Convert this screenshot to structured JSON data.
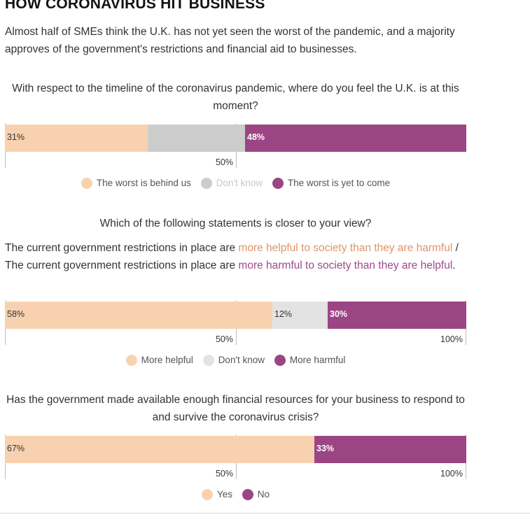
{
  "header": {
    "title": "HOW CORONAVIRUS HIT BUSINESS",
    "subtitle": "Almost half of SMEs think the U.K. has not yet seen the worst of the pandemic, and a majority approves of the government's restrictions and financial aid to businesses."
  },
  "colors": {
    "positive": "#f8d2b0",
    "neutral": "#e3e3e3",
    "negative": "#9c4584",
    "highlight_helpful": "#e0946a",
    "highlight_harmful": "#9c4a8a"
  },
  "statement": {
    "prefix": "The current government restrictions in place are ",
    "helpful_phrase": "more helpful to society than they are harmful",
    "middle": " / The current government restrictions in place are ",
    "harmful_phrase": "more harmful to society than they are helpful",
    "suffix": "."
  },
  "chart_data": [
    {
      "type": "bar",
      "orientation": "horizontal-stacked",
      "title": "With respect to the timeline of the coronavirus pandemic, where do you feel the U.K. is at this moment?",
      "series": [
        {
          "name": "The worst is behind us",
          "value": 31,
          "label": "31%",
          "color": "#f8d2b0",
          "legend_faded": false
        },
        {
          "name": "Don't know",
          "value": 21,
          "label": "",
          "color": "#cccccc",
          "legend_faded": true
        },
        {
          "name": "The worst is yet to come",
          "value": 48,
          "label": "48%",
          "color": "#9c4584",
          "legend_faded": false
        }
      ],
      "xlim": [
        0,
        100
      ],
      "gridlines": [
        50
      ],
      "tick_labels": [
        "50%"
      ]
    },
    {
      "type": "bar",
      "orientation": "horizontal-stacked",
      "title": "Which of the following statements is closer to your view?",
      "series": [
        {
          "name": "More helpful",
          "value": 58,
          "label": "58%",
          "color": "#f8d2b0",
          "legend_faded": false
        },
        {
          "name": "Don't know",
          "value": 12,
          "label": "12%",
          "color": "#e3e3e3",
          "legend_faded": false
        },
        {
          "name": "More harmful",
          "value": 30,
          "label": "30%",
          "color": "#9c4584",
          "legend_faded": false
        }
      ],
      "xlim": [
        0,
        100
      ],
      "gridlines": [
        50,
        100
      ],
      "tick_labels": [
        "50%",
        "100%"
      ]
    },
    {
      "type": "bar",
      "orientation": "horizontal-stacked",
      "title": "Has the government made available enough financial resources for your business to respond to and survive the coronavirus crisis?",
      "series": [
        {
          "name": "Yes",
          "value": 67,
          "label": "67%",
          "color": "#f8d2b0",
          "legend_faded": false
        },
        {
          "name": "No",
          "value": 33,
          "label": "33%",
          "color": "#9c4584",
          "legend_faded": false
        }
      ],
      "xlim": [
        0,
        100
      ],
      "gridlines": [
        50,
        100
      ],
      "tick_labels": [
        "50%",
        "100%"
      ]
    }
  ]
}
